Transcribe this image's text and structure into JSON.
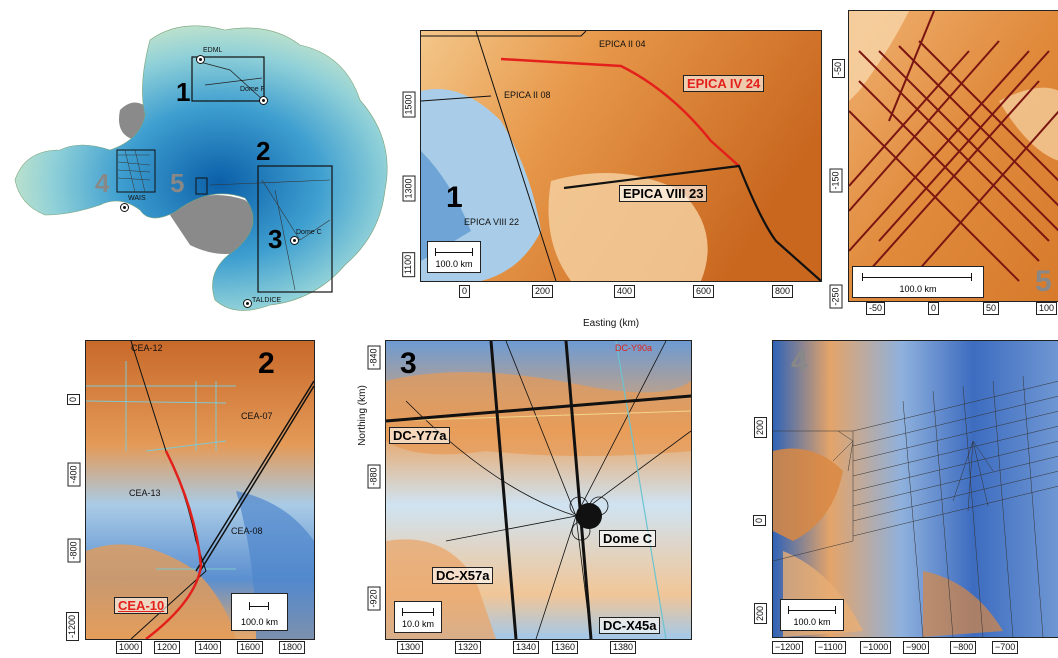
{
  "overview": {
    "stations": [
      "EDML",
      "Dome F",
      "WAIS",
      "Dome C",
      "TALDICE"
    ],
    "region_numbers": [
      "1",
      "2",
      "3",
      "4",
      "5"
    ]
  },
  "panel1": {
    "number": "1",
    "lines": [
      "EPICA II 04",
      "EPICA II 08",
      "EPICA VIII 22"
    ],
    "highlight_red": "EPICA IV 24",
    "highlight_black": "EPICA VIII 23",
    "x_ticks": [
      "0",
      "200",
      "400",
      "600",
      "800"
    ],
    "y_ticks": [
      "1500",
      "1300",
      "1100"
    ],
    "xlabel": "Easting (km)",
    "scale": "100.0 km"
  },
  "panel5": {
    "number": "5",
    "y_ticks": [
      "-50",
      "-150",
      "-250"
    ],
    "x_ticks": [
      "-50",
      "0",
      "50",
      "100"
    ],
    "scale": "100.0 km"
  },
  "panel2": {
    "number": "2",
    "lines": [
      "CEA-12",
      "CEA-07",
      "CEA-13",
      "CEA-08"
    ],
    "highlight_red": "CEA-10",
    "y_ticks": [
      "0",
      "-400",
      "-800",
      "-1200"
    ],
    "x_ticks": [
      "1000",
      "1200",
      "1400",
      "1600",
      "1800"
    ],
    "scale": "100.0 km"
  },
  "panel3": {
    "number": "3",
    "red_line": "DC-Y90a",
    "boxes": [
      "DC-Y77a",
      "Dome C",
      "DC-X57a",
      "DC-X45a"
    ],
    "y_ticks": [
      "-840",
      "-880",
      "-920"
    ],
    "ylabel": "Northing (km)",
    "x_ticks": [
      "1300",
      "1320",
      "1340",
      "1360",
      "1380"
    ],
    "scale": "10.0 km"
  },
  "panel4": {
    "number": "4",
    "y_ticks": [
      "200",
      "0",
      "200"
    ],
    "x_ticks": [
      "−1200",
      "−1100",
      "−1000",
      "−900",
      "−800",
      "−700"
    ],
    "scale": "100.0 km"
  }
}
